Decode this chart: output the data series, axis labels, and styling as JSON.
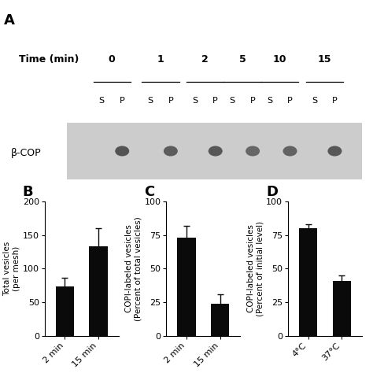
{
  "panel_A": {
    "label": "A",
    "time_points": [
      "0",
      "1",
      "2",
      "5",
      "10",
      "15"
    ],
    "band_label": "β-COP",
    "gel_bg": "#cccccc",
    "time_label": "Time (min)"
  },
  "panel_B": {
    "label": "B",
    "categories": [
      "2 min",
      "15 min"
    ],
    "values": [
      73,
      133
    ],
    "errors": [
      13,
      27
    ],
    "ylabel": "Total vesicles\n(per mesh)",
    "ylim": [
      0,
      200
    ],
    "yticks": [
      0,
      50,
      100,
      150,
      200
    ],
    "bar_color": "#0a0a0a",
    "bar_width": 0.55,
    "ecolor": "#0a0a0a"
  },
  "panel_C": {
    "label": "C",
    "categories": [
      "2 min",
      "15 min"
    ],
    "values": [
      73,
      24
    ],
    "errors": [
      9,
      7
    ],
    "ylabel": "COPI-labeled vesicles\n(Percent of total vesicles)",
    "ylim": [
      0,
      100
    ],
    "yticks": [
      0,
      25,
      50,
      75,
      100
    ],
    "bar_color": "#0a0a0a",
    "bar_width": 0.55,
    "ecolor": "#0a0a0a"
  },
  "panel_D": {
    "label": "D",
    "categories": [
      "4°C",
      "37°C"
    ],
    "values": [
      80,
      41
    ],
    "errors": [
      3,
      4
    ],
    "ylabel": "COPI-labeled vesicles\n(Percent of initial level)",
    "ylim": [
      0,
      100
    ],
    "yticks": [
      0,
      25,
      50,
      75,
      100
    ],
    "bar_color": "#0a0a0a",
    "bar_width": 0.55,
    "ecolor": "#0a0a0a"
  },
  "fig_bg": "#ffffff",
  "label_fontsize": 13,
  "tick_fontsize": 8,
  "axis_label_fontsize": 7.5
}
